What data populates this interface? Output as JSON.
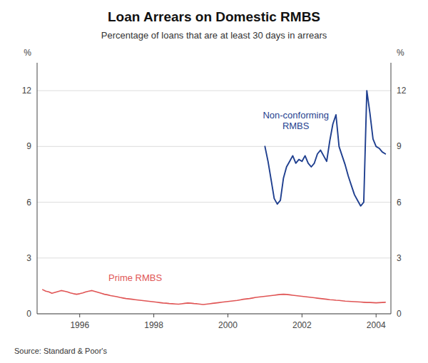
{
  "chart_data": {
    "type": "line",
    "title": "Loan Arrears on Domestic RMBS",
    "subtitle": "Percentage of loans that are at least 30 days in arrears",
    "source": "Source: Standard & Poor's",
    "y_label": "%",
    "y2_label": "%",
    "xlim": [
      1994.85,
      2004.4
    ],
    "xticks": [
      1996,
      1998,
      2000,
      2002,
      2004
    ],
    "ylim": [
      0,
      13.5
    ],
    "yticks": [
      0,
      3,
      6,
      9,
      12
    ],
    "y2lim": [
      0,
      13.5
    ],
    "y2ticks": [
      0,
      3,
      6,
      9,
      12
    ],
    "grid": true,
    "series": [
      {
        "name": "Prime RMBS",
        "color": "#e05555",
        "x": [
          1995.0,
          1995.083,
          1995.167,
          1995.25,
          1995.333,
          1995.417,
          1995.5,
          1995.583,
          1995.667,
          1995.75,
          1995.833,
          1995.917,
          1996.0,
          1996.083,
          1996.167,
          1996.25,
          1996.333,
          1996.417,
          1996.5,
          1996.583,
          1996.667,
          1996.75,
          1996.833,
          1996.917,
          1997.0,
          1997.083,
          1997.167,
          1997.25,
          1997.333,
          1997.417,
          1997.5,
          1997.583,
          1997.667,
          1997.75,
          1997.833,
          1997.917,
          1998.0,
          1998.083,
          1998.167,
          1998.25,
          1998.333,
          1998.417,
          1998.5,
          1998.583,
          1998.667,
          1998.75,
          1998.833,
          1998.917,
          1999.0,
          1999.083,
          1999.167,
          1999.25,
          1999.333,
          1999.417,
          1999.5,
          1999.583,
          1999.667,
          1999.75,
          1999.833,
          1999.917,
          2000.0,
          2000.083,
          2000.167,
          2000.25,
          2000.333,
          2000.417,
          2000.5,
          2000.583,
          2000.667,
          2000.75,
          2000.833,
          2000.917,
          2001.0,
          2001.083,
          2001.167,
          2001.25,
          2001.333,
          2001.417,
          2001.5,
          2001.583,
          2001.667,
          2001.75,
          2001.833,
          2001.917,
          2002.0,
          2002.083,
          2002.167,
          2002.25,
          2002.333,
          2002.417,
          2002.5,
          2002.583,
          2002.667,
          2002.75,
          2002.833,
          2002.917,
          2003.0,
          2003.083,
          2003.167,
          2003.25,
          2003.333,
          2003.417,
          2003.5,
          2003.583,
          2003.667,
          2003.75,
          2003.833,
          2003.917,
          2004.0,
          2004.083,
          2004.167,
          2004.25
        ],
        "values": [
          1.3,
          1.22,
          1.18,
          1.1,
          1.15,
          1.2,
          1.25,
          1.22,
          1.18,
          1.12,
          1.08,
          1.05,
          1.08,
          1.12,
          1.18,
          1.22,
          1.25,
          1.2,
          1.15,
          1.1,
          1.05,
          1.02,
          0.98,
          0.95,
          0.92,
          0.88,
          0.85,
          0.82,
          0.8,
          0.78,
          0.76,
          0.74,
          0.72,
          0.7,
          0.68,
          0.66,
          0.64,
          0.62,
          0.6,
          0.58,
          0.57,
          0.55,
          0.54,
          0.53,
          0.52,
          0.54,
          0.56,
          0.58,
          0.57,
          0.55,
          0.54,
          0.52,
          0.5,
          0.52,
          0.54,
          0.56,
          0.58,
          0.6,
          0.62,
          0.64,
          0.66,
          0.68,
          0.7,
          0.72,
          0.75,
          0.78,
          0.8,
          0.82,
          0.85,
          0.88,
          0.9,
          0.92,
          0.94,
          0.96,
          0.98,
          1.0,
          1.02,
          1.04,
          1.05,
          1.04,
          1.02,
          1.0,
          0.98,
          0.96,
          0.94,
          0.92,
          0.9,
          0.88,
          0.86,
          0.84,
          0.82,
          0.8,
          0.78,
          0.76,
          0.75,
          0.73,
          0.72,
          0.7,
          0.68,
          0.67,
          0.66,
          0.65,
          0.64,
          0.63,
          0.62,
          0.61,
          0.61,
          0.6,
          0.59,
          0.6,
          0.61,
          0.62
        ]
      },
      {
        "name": "Non-conforming\nRMBS",
        "color": "#1f3f8f",
        "x": [
          2001.0,
          2001.083,
          2001.167,
          2001.25,
          2001.333,
          2001.417,
          2001.5,
          2001.583,
          2001.667,
          2001.75,
          2001.833,
          2001.917,
          2002.0,
          2002.083,
          2002.167,
          2002.25,
          2002.333,
          2002.417,
          2002.5,
          2002.583,
          2002.667,
          2002.75,
          2002.833,
          2002.917,
          2003.0,
          2003.083,
          2003.167,
          2003.25,
          2003.333,
          2003.417,
          2003.5,
          2003.583,
          2003.667,
          2003.75,
          2003.833,
          2003.917,
          2004.0,
          2004.083,
          2004.167,
          2004.25
        ],
        "values": [
          9.0,
          8.2,
          7.2,
          6.2,
          5.9,
          6.1,
          7.3,
          7.9,
          8.2,
          8.5,
          8.1,
          8.3,
          8.2,
          8.5,
          8.1,
          7.9,
          8.1,
          8.6,
          8.8,
          8.5,
          8.2,
          9.3,
          10.2,
          10.7,
          9.0,
          8.5,
          8.0,
          7.4,
          6.9,
          6.4,
          6.1,
          5.8,
          6.0,
          12.0,
          10.8,
          9.4,
          9.0,
          8.9,
          8.7,
          8.6
        ]
      }
    ]
  }
}
